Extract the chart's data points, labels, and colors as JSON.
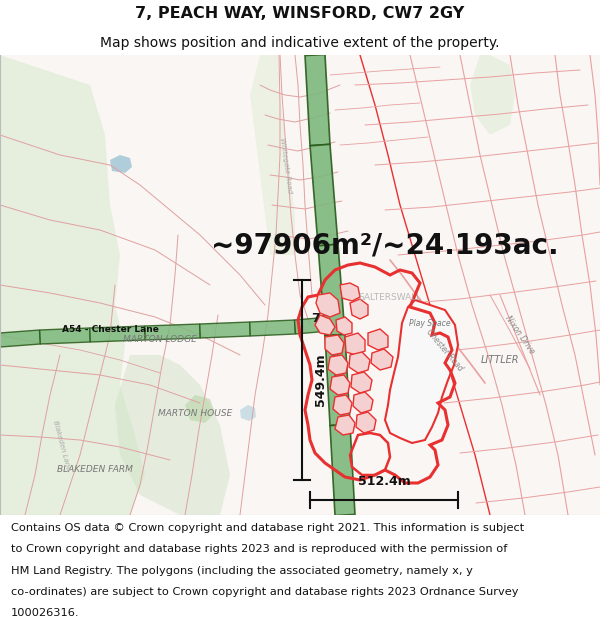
{
  "title_line1": "7, PEACH WAY, WINSFORD, CW7 2GY",
  "title_line2": "Map shows position and indicative extent of the property.",
  "title_fontsize": 11.5,
  "subtitle_fontsize": 10,
  "area_text": "~97906m²/~24.193ac.",
  "area_fontsize": 20,
  "footer_lines": [
    "Contains OS data © Crown copyright and database right 2021. This information is subject",
    "to Crown copyright and database rights 2023 and is reproduced with the permission of",
    "HM Land Registry. The polygons (including the associated geometry, namely x, y",
    "co-ordinates) are subject to Crown copyright and database rights 2023 Ordnance Survey",
    "100026316."
  ],
  "footer_fontsize": 8.2,
  "red_color": "#e83030",
  "light_red": "#f5c0c0",
  "green_road_color": "#4a7a3a",
  "green_road_light": "#7db87d",
  "green_field": "#d4e8c8",
  "green_field2": "#c8dfc0",
  "map_bg": "#f8f4f0",
  "dim_color": "#111111",
  "label_color": "#777777",
  "road_label_color": "#333333",
  "salterswall_color": "#aaaaaa",
  "a54_bg": "#2a5a1a",
  "a54_fg": "#5a9a4a"
}
